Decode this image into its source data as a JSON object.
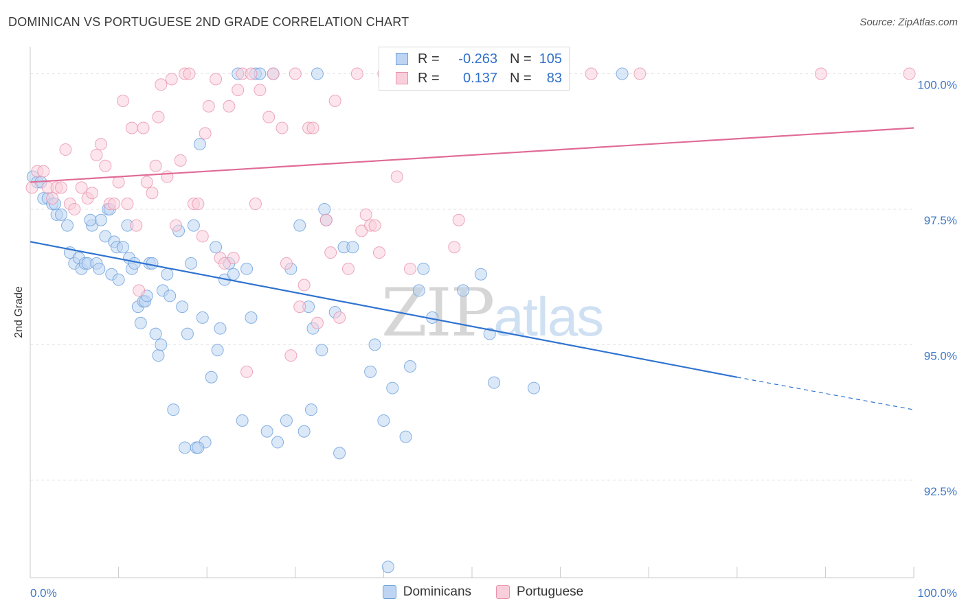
{
  "title": "DOMINICAN VS PORTUGUESE 2ND GRADE CORRELATION CHART",
  "source": "Source: ZipAtlas.com",
  "watermark": {
    "part1": "ZIP",
    "part2": "atlas"
  },
  "legend": {
    "rows": [
      {
        "r_label": "R =",
        "r_value": "-0.263",
        "n_label": "N =",
        "n_value": "105",
        "color": "#9fc3ee",
        "border": "#6a9fdc"
      },
      {
        "r_label": "R =",
        "r_value": "0.137",
        "n_label": "N =",
        "n_value": "83",
        "color": "#f6b9cb",
        "border": "#e893ad"
      }
    ]
  },
  "bottom_legend": [
    {
      "label": "Dominicans",
      "color": "#bdd5f3",
      "border": "#6a9fdc"
    },
    {
      "label": "Portuguese",
      "color": "#f9cfdc",
      "border": "#e893ad"
    }
  ],
  "chart_data": {
    "type": "scatter",
    "title": "DOMINICAN VS PORTUGUESE 2ND GRADE CORRELATION CHART",
    "xlabel": "",
    "ylabel": "2nd Grade",
    "xlim": [
      0,
      100
    ],
    "ylim": [
      90.7,
      100.5
    ],
    "x_tick_labels": [
      "0.0%",
      "100.0%"
    ],
    "y_ticks": [
      92.5,
      95.0,
      97.5,
      100.0
    ],
    "y_tick_labels": [
      "92.5%",
      "95.0%",
      "97.5%",
      "100.0%"
    ],
    "grid": true,
    "series": [
      {
        "name": "Dominicans",
        "color": "#6a9fdc",
        "fill": "#bdd5f3",
        "trend": {
          "x0": 0,
          "y0": 96.9,
          "x1": 80,
          "y1": 94.4,
          "dash_to_x": 100,
          "dash_to_y": 93.8
        },
        "points": [
          [
            0.3,
            98.1
          ],
          [
            0.8,
            98.0
          ],
          [
            1.2,
            98.0
          ],
          [
            1.5,
            97.7
          ],
          [
            2.0,
            97.7
          ],
          [
            2.5,
            97.6
          ],
          [
            3.0,
            97.4
          ],
          [
            3.5,
            97.4
          ],
          [
            4.2,
            97.2
          ],
          [
            4.5,
            96.7
          ],
          [
            5.0,
            96.5
          ],
          [
            5.5,
            96.6
          ],
          [
            5.8,
            96.4
          ],
          [
            6.2,
            96.5
          ],
          [
            6.5,
            96.5
          ],
          [
            7.0,
            97.2
          ],
          [
            7.5,
            96.5
          ],
          [
            8.0,
            97.3
          ],
          [
            8.5,
            97.0
          ],
          [
            8.8,
            97.5
          ],
          [
            9.0,
            97.5
          ],
          [
            9.2,
            96.3
          ],
          [
            9.5,
            96.9
          ],
          [
            9.8,
            96.8
          ],
          [
            10.0,
            96.2
          ],
          [
            10.5,
            96.8
          ],
          [
            11.0,
            97.2
          ],
          [
            11.2,
            96.6
          ],
          [
            11.5,
            96.4
          ],
          [
            11.8,
            96.5
          ],
          [
            12.2,
            95.7
          ],
          [
            12.5,
            95.4
          ],
          [
            12.8,
            95.8
          ],
          [
            13.0,
            95.8
          ],
          [
            13.5,
            96.5
          ],
          [
            13.8,
            96.5
          ],
          [
            14.2,
            95.2
          ],
          [
            14.5,
            94.8
          ],
          [
            14.8,
            95.0
          ],
          [
            15.0,
            96.0
          ],
          [
            15.5,
            96.3
          ],
          [
            15.8,
            95.9
          ],
          [
            16.2,
            93.8
          ],
          [
            16.8,
            97.1
          ],
          [
            17.2,
            95.7
          ],
          [
            17.5,
            93.1
          ],
          [
            17.8,
            95.2
          ],
          [
            18.2,
            96.5
          ],
          [
            18.5,
            97.2
          ],
          [
            18.8,
            93.1
          ],
          [
            19.2,
            98.7
          ],
          [
            19.5,
            95.5
          ],
          [
            19.8,
            93.2
          ],
          [
            20.5,
            94.4
          ],
          [
            21.0,
            96.8
          ],
          [
            21.2,
            94.9
          ],
          [
            21.5,
            95.3
          ],
          [
            22.0,
            96.2
          ],
          [
            22.5,
            96.5
          ],
          [
            23.0,
            96.3
          ],
          [
            23.5,
            100.0
          ],
          [
            24.0,
            93.6
          ],
          [
            24.5,
            96.4
          ],
          [
            25.0,
            95.5
          ],
          [
            25.5,
            100.0
          ],
          [
            26.0,
            100.0
          ],
          [
            26.8,
            93.4
          ],
          [
            27.5,
            100.0
          ],
          [
            28.0,
            93.2
          ],
          [
            29.0,
            93.6
          ],
          [
            29.5,
            96.4
          ],
          [
            30.5,
            97.2
          ],
          [
            31.0,
            93.4
          ],
          [
            31.5,
            95.7
          ],
          [
            32.0,
            95.3
          ],
          [
            32.5,
            100.0
          ],
          [
            33.0,
            94.9
          ],
          [
            33.3,
            97.5
          ],
          [
            33.5,
            97.3
          ],
          [
            34.5,
            95.6
          ],
          [
            35.0,
            93.0
          ],
          [
            35.5,
            96.8
          ],
          [
            36.5,
            96.8
          ],
          [
            38.5,
            94.5
          ],
          [
            39.0,
            95.0
          ],
          [
            40.0,
            93.6
          ],
          [
            40.5,
            90.9
          ],
          [
            41.0,
            94.2
          ],
          [
            42.5,
            93.3
          ],
          [
            43.0,
            94.6
          ],
          [
            44.0,
            96.0
          ],
          [
            44.5,
            96.4
          ],
          [
            45.5,
            95.5
          ],
          [
            49.0,
            96.0
          ],
          [
            51.0,
            96.3
          ],
          [
            52.0,
            95.2
          ],
          [
            52.5,
            94.3
          ],
          [
            57.0,
            94.2
          ],
          [
            67.0,
            100.0
          ],
          [
            19.0,
            93.1
          ],
          [
            6.8,
            97.3
          ],
          [
            7.8,
            96.4
          ],
          [
            2.8,
            97.6
          ],
          [
            13.2,
            95.9
          ],
          [
            31.8,
            93.8
          ]
        ]
      },
      {
        "name": "Portuguese",
        "color": "#e893ad",
        "fill": "#f9cfdc",
        "trend": {
          "x0": 0,
          "y0": 98.0,
          "x1": 100,
          "y1": 99.0
        },
        "points": [
          [
            0.2,
            97.9
          ],
          [
            0.8,
            98.2
          ],
          [
            1.5,
            98.2
          ],
          [
            2.0,
            97.9
          ],
          [
            2.5,
            97.7
          ],
          [
            3.0,
            97.9
          ],
          [
            3.5,
            97.9
          ],
          [
            4.0,
            98.6
          ],
          [
            4.5,
            97.6
          ],
          [
            5.0,
            97.5
          ],
          [
            5.8,
            97.9
          ],
          [
            6.5,
            97.7
          ],
          [
            7.0,
            97.8
          ],
          [
            7.5,
            98.5
          ],
          [
            8.0,
            98.7
          ],
          [
            8.5,
            98.3
          ],
          [
            9.0,
            97.6
          ],
          [
            9.5,
            97.6
          ],
          [
            10.0,
            98.0
          ],
          [
            10.5,
            99.5
          ],
          [
            11.0,
            97.6
          ],
          [
            11.5,
            99.0
          ],
          [
            12.0,
            97.2
          ],
          [
            12.8,
            99.0
          ],
          [
            13.2,
            98.0
          ],
          [
            13.8,
            97.8
          ],
          [
            14.2,
            98.3
          ],
          [
            14.5,
            99.2
          ],
          [
            14.8,
            99.8
          ],
          [
            15.5,
            98.1
          ],
          [
            16.0,
            99.9
          ],
          [
            16.5,
            97.2
          ],
          [
            17.0,
            98.4
          ],
          [
            17.5,
            100.0
          ],
          [
            18.0,
            100.0
          ],
          [
            18.5,
            97.6
          ],
          [
            19.0,
            97.6
          ],
          [
            19.5,
            97.0
          ],
          [
            19.8,
            98.9
          ],
          [
            20.2,
            99.4
          ],
          [
            21.0,
            99.9
          ],
          [
            21.5,
            96.6
          ],
          [
            22.0,
            96.5
          ],
          [
            22.5,
            99.4
          ],
          [
            23.0,
            96.6
          ],
          [
            23.5,
            99.7
          ],
          [
            24.0,
            100.0
          ],
          [
            24.5,
            94.5
          ],
          [
            25.0,
            100.0
          ],
          [
            25.5,
            97.6
          ],
          [
            26.0,
            99.7
          ],
          [
            27.0,
            99.2
          ],
          [
            27.5,
            100.0
          ],
          [
            28.5,
            99.0
          ],
          [
            29.0,
            96.5
          ],
          [
            29.5,
            94.8
          ],
          [
            30.0,
            100.0
          ],
          [
            30.5,
            95.7
          ],
          [
            31.0,
            96.1
          ],
          [
            31.5,
            99.0
          ],
          [
            32.0,
            99.0
          ],
          [
            32.5,
            95.4
          ],
          [
            33.5,
            97.3
          ],
          [
            34.0,
            96.7
          ],
          [
            34.5,
            99.5
          ],
          [
            35.0,
            95.5
          ],
          [
            36.0,
            96.4
          ],
          [
            37.0,
            100.0
          ],
          [
            37.5,
            97.1
          ],
          [
            38.0,
            97.4
          ],
          [
            38.5,
            97.2
          ],
          [
            39.0,
            97.2
          ],
          [
            39.5,
            96.7
          ],
          [
            40.0,
            100.0
          ],
          [
            41.5,
            98.1
          ],
          [
            43.0,
            96.4
          ],
          [
            48.0,
            96.8
          ],
          [
            48.5,
            97.3
          ],
          [
            63.5,
            100.0
          ],
          [
            69.0,
            100.0
          ],
          [
            89.5,
            100.0
          ],
          [
            99.5,
            100.0
          ],
          [
            12.3,
            96.0
          ]
        ]
      }
    ]
  }
}
